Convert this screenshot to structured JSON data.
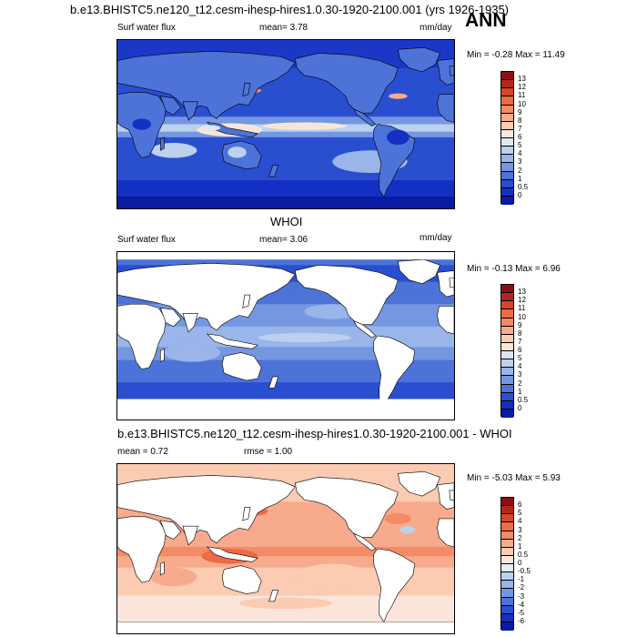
{
  "header": {
    "run_title": "b.e13.BHISTC5.ne120_t12.cesm-ihesp-hires1.0.30-1920-2100.001 (yrs 1926-1935)",
    "season": "ANN"
  },
  "panels": [
    {
      "id": "model",
      "title": "",
      "variable": "Surf water flux",
      "mean_text": "mean=  3.78",
      "units": "mm/day",
      "minmax": "Min =  -0.28 Max =  11.49",
      "colorbar_ticks": [
        "13",
        "12",
        "11",
        "10",
        "9",
        "8",
        "7",
        "6",
        "5",
        "4",
        "3",
        "2",
        "1",
        "0.5",
        "0"
      ],
      "colorbar_colors": [
        "#8c0f14",
        "#b3261a",
        "#d7452a",
        "#ec6a45",
        "#f48b65",
        "#f8ab8c",
        "#fbcbb2",
        "#f7e6d7",
        "#dde6f3",
        "#bcd1ee",
        "#99b5e9",
        "#7597e2",
        "#4d73d9",
        "#2a4ed0",
        "#1430c4",
        "#0a1aa4"
      ],
      "map_style": "model"
    },
    {
      "id": "obs",
      "title": "WHOI",
      "variable": "Surf water flux",
      "mean_text": "mean=  3.06",
      "units": "mm/day",
      "minmax": "Min =  -0.13 Max =  6.96",
      "colorbar_ticks": [
        "13",
        "12",
        "11",
        "10",
        "9",
        "8",
        "7",
        "6",
        "5",
        "4",
        "3",
        "2",
        "1",
        "0.5",
        "0"
      ],
      "colorbar_colors": [
        "#8c0f14",
        "#b3261a",
        "#d7452a",
        "#ec6a45",
        "#f48b65",
        "#f8ab8c",
        "#fbcbb2",
        "#f7e6d7",
        "#dde6f3",
        "#bcd1ee",
        "#99b5e9",
        "#7597e2",
        "#4d73d9",
        "#2a4ed0",
        "#1430c4",
        "#0a1aa4"
      ],
      "map_style": "obs"
    },
    {
      "id": "diff",
      "title": "b.e13.BHISTC5.ne120_t12.cesm-ihesp-hires1.0.30-1920-2100.001 - WHOI",
      "mean_text": "mean =  0.72",
      "rmse_text": "rmse =  1.00",
      "minmax": "Min =  -5.03 Max =  5.93",
      "colorbar_ticks": [
        "6",
        "5",
        "4",
        "3",
        "2",
        "1",
        "0.5",
        "0",
        "-0.5",
        "-1",
        "-2",
        "-3",
        "-4",
        "-5",
        "-6"
      ],
      "colorbar_colors": [
        "#8c0f14",
        "#b3261a",
        "#d7452a",
        "#ec6a45",
        "#f48b65",
        "#f8ab8c",
        "#fbcbb2",
        "#fbe5da",
        "#e3ecf8",
        "#bcd1ee",
        "#99b5e9",
        "#7597e2",
        "#4d73d9",
        "#2a4ed0",
        "#1430c4",
        "#0a1aa4"
      ],
      "map_style": "diff"
    }
  ]
}
